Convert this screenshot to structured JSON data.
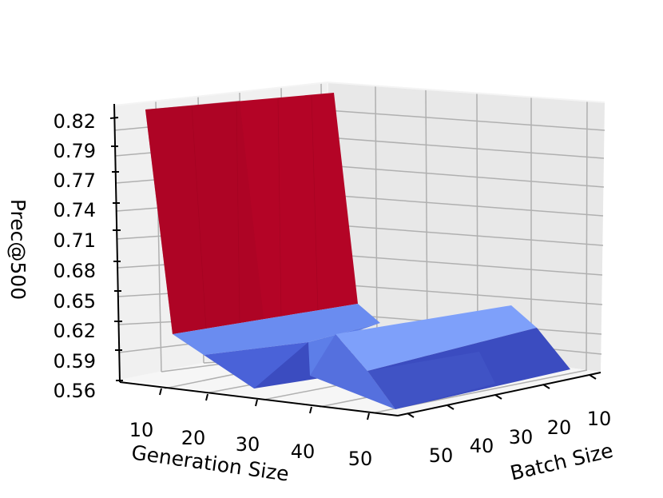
{
  "chart_data": {
    "type": "surface3d",
    "zlabel": "Prec@500",
    "xlabel": "Generation Size",
    "ylabel": "Batch Size",
    "z_ticks": [
      "0.56",
      "0.59",
      "0.62",
      "0.65",
      "0.68",
      "0.71",
      "0.74",
      "0.77",
      "0.79",
      "0.82"
    ],
    "x_ticks": [
      "10",
      "20",
      "30",
      "40",
      "50"
    ],
    "y_ticks": [
      "10",
      "20",
      "30",
      "40",
      "50"
    ],
    "grid": true,
    "colormap": "coolwarm",
    "colors": {
      "high": "#b40426",
      "mid": "#6a8cf0",
      "low": "#3b4cc0",
      "light": "#7ea0fa"
    },
    "surface_panels": [
      {
        "name": "peak-wall",
        "level": 0.82
      },
      {
        "name": "low-plateau-left",
        "level": 0.59
      },
      {
        "name": "valley",
        "level": 0.56
      },
      {
        "name": "low-plateau-right",
        "level": 0.6
      }
    ]
  }
}
